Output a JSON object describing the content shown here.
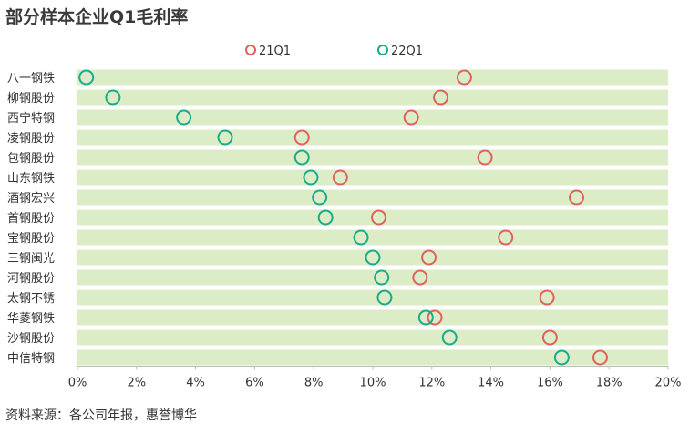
{
  "chart_data": {
    "type": "scatter",
    "title": "部分样本企业Q1毛利率",
    "categories": [
      "八一钢铁",
      "柳钢股份",
      "西宁特钢",
      "凌钢股份",
      "包钢股份",
      "山东钢铁",
      "酒钢宏兴",
      "首钢股份",
      "宝钢股份",
      "三钢闽光",
      "河钢股份",
      "太钢不锈",
      "华菱钢铁",
      "沙钢股份",
      "中信特钢"
    ],
    "series": [
      {
        "name": "21Q1",
        "color": "#e0615a",
        "values": [
          13.1,
          12.3,
          11.3,
          7.6,
          13.8,
          8.9,
          16.9,
          10.2,
          14.5,
          11.9,
          11.6,
          15.9,
          12.1,
          16.0,
          17.7
        ]
      },
      {
        "name": "22Q1",
        "color": "#1aab8a",
        "values": [
          0.3,
          1.2,
          3.6,
          5.0,
          7.6,
          7.9,
          8.2,
          8.4,
          9.6,
          10.0,
          10.3,
          10.4,
          11.8,
          12.6,
          16.4
        ]
      }
    ],
    "xlim": [
      0,
      20
    ],
    "xticks": [
      "0%",
      "2%",
      "4%",
      "6%",
      "8%",
      "10%",
      "12%",
      "14%",
      "16%",
      "18%",
      "20%"
    ],
    "band_color": "#dbecc7",
    "legend_position": "top-center"
  },
  "source_text": "资料来源：各公司年报，惠誉博华"
}
